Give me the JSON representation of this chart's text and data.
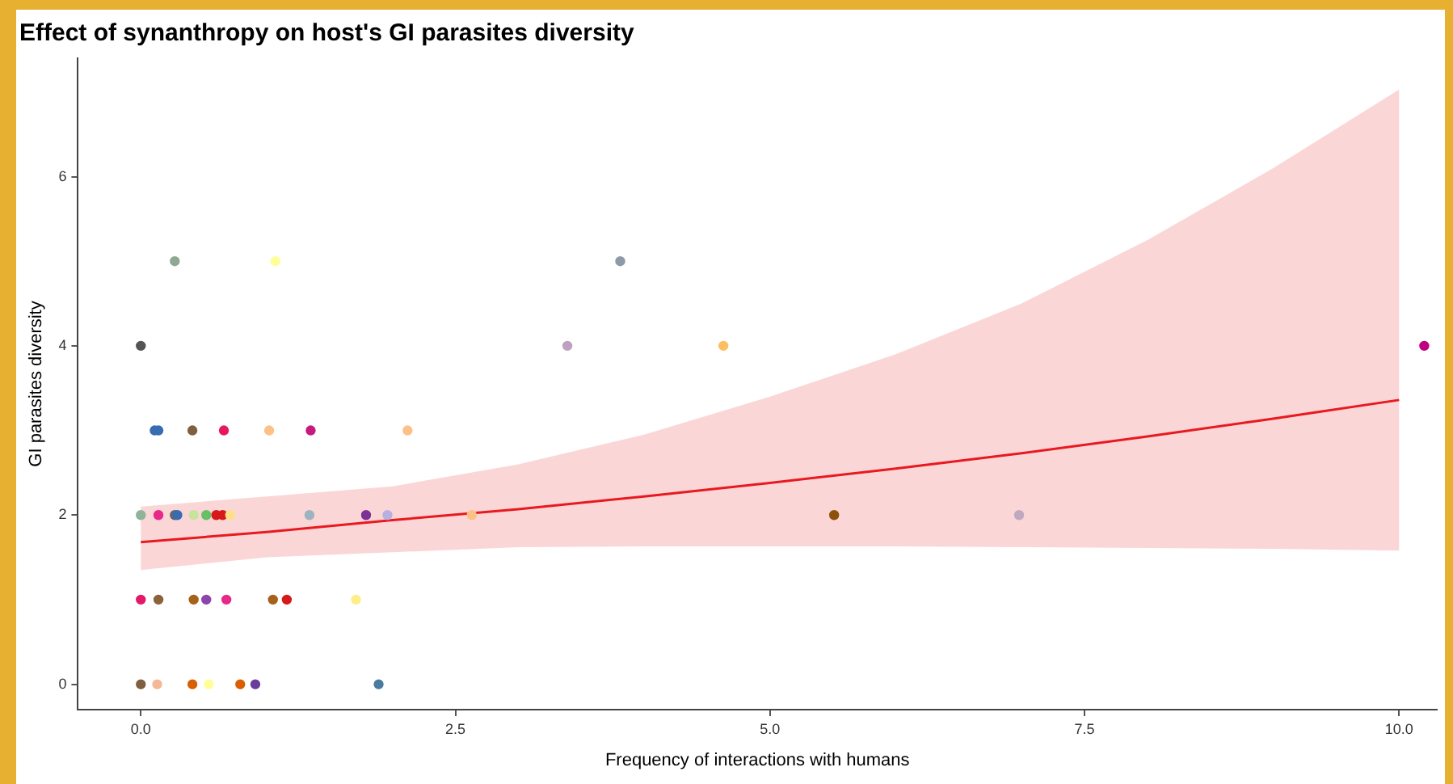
{
  "chart_data": {
    "type": "scatter",
    "title": "Effect of synanthropy on host's GI parasites diversity",
    "xlabel": "Frequency of interactions with humans",
    "ylabel": "GI parasites diversity",
    "xlim": [
      -0.5,
      10.3
    ],
    "ylim": [
      -0.3,
      7.4
    ],
    "xticks": [
      {
        "value": 0,
        "label": "0.0"
      },
      {
        "value": 2.5,
        "label": "2.5"
      },
      {
        "value": 5,
        "label": "5.0"
      },
      {
        "value": 7.5,
        "label": "7.5"
      },
      {
        "value": 10,
        "label": "10.0"
      }
    ],
    "yticks": [
      0,
      2,
      4,
      6
    ],
    "grid": false,
    "legend": false,
    "series": [
      {
        "marker": "circle",
        "x": [
          0.27,
          1.07,
          3.81,
          0,
          3.39,
          4.63,
          10.2,
          0.11,
          0.14,
          0.41,
          0.66,
          1.02,
          1.35,
          2.12,
          0,
          0.14,
          0.27,
          0.29,
          0.42,
          0.52,
          0.6,
          0.65,
          0.71,
          1.34,
          1.79,
          1.96,
          2.63,
          5.51,
          6.98,
          0,
          0.14,
          0.42,
          0.52,
          0.68,
          1.05,
          1.16,
          1.71,
          0,
          0.13,
          0.41,
          0.54,
          0.79,
          0.91,
          1.89
        ],
        "values": [
          5,
          5,
          5,
          4,
          4,
          4,
          4,
          3,
          3,
          3,
          3,
          3,
          3,
          3,
          2,
          2,
          2,
          2,
          2,
          2,
          2,
          2,
          2,
          2,
          2,
          2,
          2,
          2,
          2,
          1,
          1,
          1,
          1,
          1,
          1,
          1,
          1,
          0,
          0,
          0,
          0,
          0,
          0,
          0
        ],
        "colors": [
          "#8fa892",
          "#ffff99",
          "#8e9aa8",
          "#555555",
          "#c0a0c0",
          "#fdc060",
          "#c0007f",
          "#386cb0",
          "#386cb0",
          "#7f5f3f",
          "#e6195a",
          "#fdc086",
          "#c51b7d",
          "#fdc086",
          "#8fb39b",
          "#e7298a",
          "#666666",
          "#386cb0",
          "#c7e39c",
          "#66c066",
          "#d7191c",
          "#d7191c",
          "#fee08b",
          "#9db4c0",
          "#7b3294",
          "#b8b0e0",
          "#fdc086",
          "#8c510a",
          "#c0a8c0",
          "#e31a6c",
          "#8c6239",
          "#a6611a",
          "#8e44ad",
          "#e7298a",
          "#a6611a",
          "#d7191c",
          "#ffed8a",
          "#7f5f3f",
          "#f4b896",
          "#d95f02",
          "#ffff99",
          "#d95f02",
          "#6a3d9a",
          "#4a7ca0"
        ]
      },
      {
        "type": "line",
        "color": "#e8191f",
        "x": [
          0,
          1,
          2,
          3,
          4,
          5,
          6,
          7,
          8,
          9,
          10
        ],
        "values": [
          1.68,
          1.8,
          1.94,
          2.07,
          2.22,
          2.38,
          2.55,
          2.73,
          2.93,
          3.14,
          3.36
        ],
        "lower": [
          1.35,
          1.5,
          1.56,
          1.62,
          1.63,
          1.63,
          1.63,
          1.62,
          1.61,
          1.6,
          1.58
        ],
        "upper": [
          2.1,
          2.22,
          2.34,
          2.6,
          2.95,
          3.4,
          3.9,
          4.5,
          5.25,
          6.1,
          7.03
        ]
      }
    ]
  }
}
